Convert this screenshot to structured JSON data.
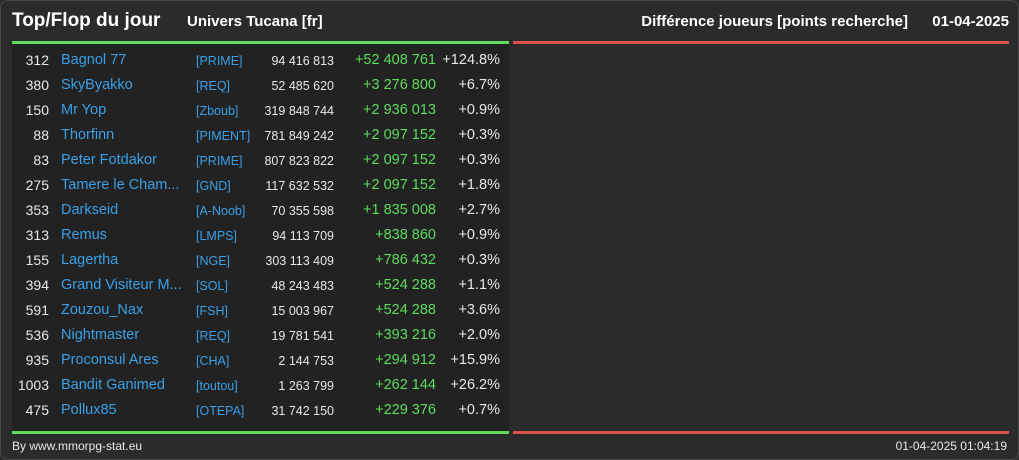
{
  "header": {
    "title": "Top/Flop du jour",
    "subtitle": "Univers Tucana [fr]",
    "metric": "Différence joueurs [points recherche]",
    "date": "01-04-2025"
  },
  "colors": {
    "top_accent": "#5ddc5d",
    "flop_accent": "#d9534a",
    "link_blue": "#3aa0e8",
    "gain_green": "#5ddc5d"
  },
  "top": [
    {
      "rank": "312",
      "name": "Bagnol 77",
      "ally": "[PRIME]",
      "points": "94 416 813",
      "diff": "+52 408 761",
      "pct": "+124.8%"
    },
    {
      "rank": "380",
      "name": "SkyByakko",
      "ally": "[REQ]",
      "points": "52 485 620",
      "diff": "+3 276 800",
      "pct": "+6.7%"
    },
    {
      "rank": "150",
      "name": "Mr Yop",
      "ally": "[Zboub]",
      "points": "319 848 744",
      "diff": "+2 936 013",
      "pct": "+0.9%"
    },
    {
      "rank": "88",
      "name": "Thorfinn",
      "ally": "[PIMENT]",
      "points": "781 849 242",
      "diff": "+2 097 152",
      "pct": "+0.3%"
    },
    {
      "rank": "83",
      "name": "Peter Fotdakor",
      "ally": "[PRIME]",
      "points": "807 823 822",
      "diff": "+2 097 152",
      "pct": "+0.3%"
    },
    {
      "rank": "275",
      "name": "Tamere le Cham...",
      "ally": "[GND]",
      "points": "117 632 532",
      "diff": "+2 097 152",
      "pct": "+1.8%"
    },
    {
      "rank": "353",
      "name": "Darkseid",
      "ally": "[A-Noob]",
      "points": "70 355 598",
      "diff": "+1 835 008",
      "pct": "+2.7%"
    },
    {
      "rank": "313",
      "name": "Remus",
      "ally": "[LMPS]",
      "points": "94 113 709",
      "diff": "+838 860",
      "pct": "+0.9%"
    },
    {
      "rank": "155",
      "name": "Lagertha",
      "ally": "[NGE]",
      "points": "303 113 409",
      "diff": "+786 432",
      "pct": "+0.3%"
    },
    {
      "rank": "394",
      "name": "Grand Visiteur M...",
      "ally": "[SOL]",
      "points": "48 243 483",
      "diff": "+524 288",
      "pct": "+1.1%"
    },
    {
      "rank": "591",
      "name": "Zouzou_Nax",
      "ally": "[FSH]",
      "points": "15 003 967",
      "diff": "+524 288",
      "pct": "+3.6%"
    },
    {
      "rank": "536",
      "name": "Nightmaster",
      "ally": "[REQ]",
      "points": "19 781 541",
      "diff": "+393 216",
      "pct": "+2.0%"
    },
    {
      "rank": "935",
      "name": "Proconsul Ares",
      "ally": "[CHA]",
      "points": "2 144 753",
      "diff": "+294 912",
      "pct": "+15.9%"
    },
    {
      "rank": "1003",
      "name": "Bandit Ganimed",
      "ally": "[toutou]",
      "points": "1 263 799",
      "diff": "+262 144",
      "pct": "+26.2%"
    },
    {
      "rank": "475",
      "name": "Pollux85",
      "ally": "[OTEPA]",
      "points": "31 742 150",
      "diff": "+229 376",
      "pct": "+0.7%"
    }
  ],
  "footer": {
    "credit": "By www.mmorpg-stat.eu",
    "timestamp": "01-04-2025 01:04:19"
  }
}
